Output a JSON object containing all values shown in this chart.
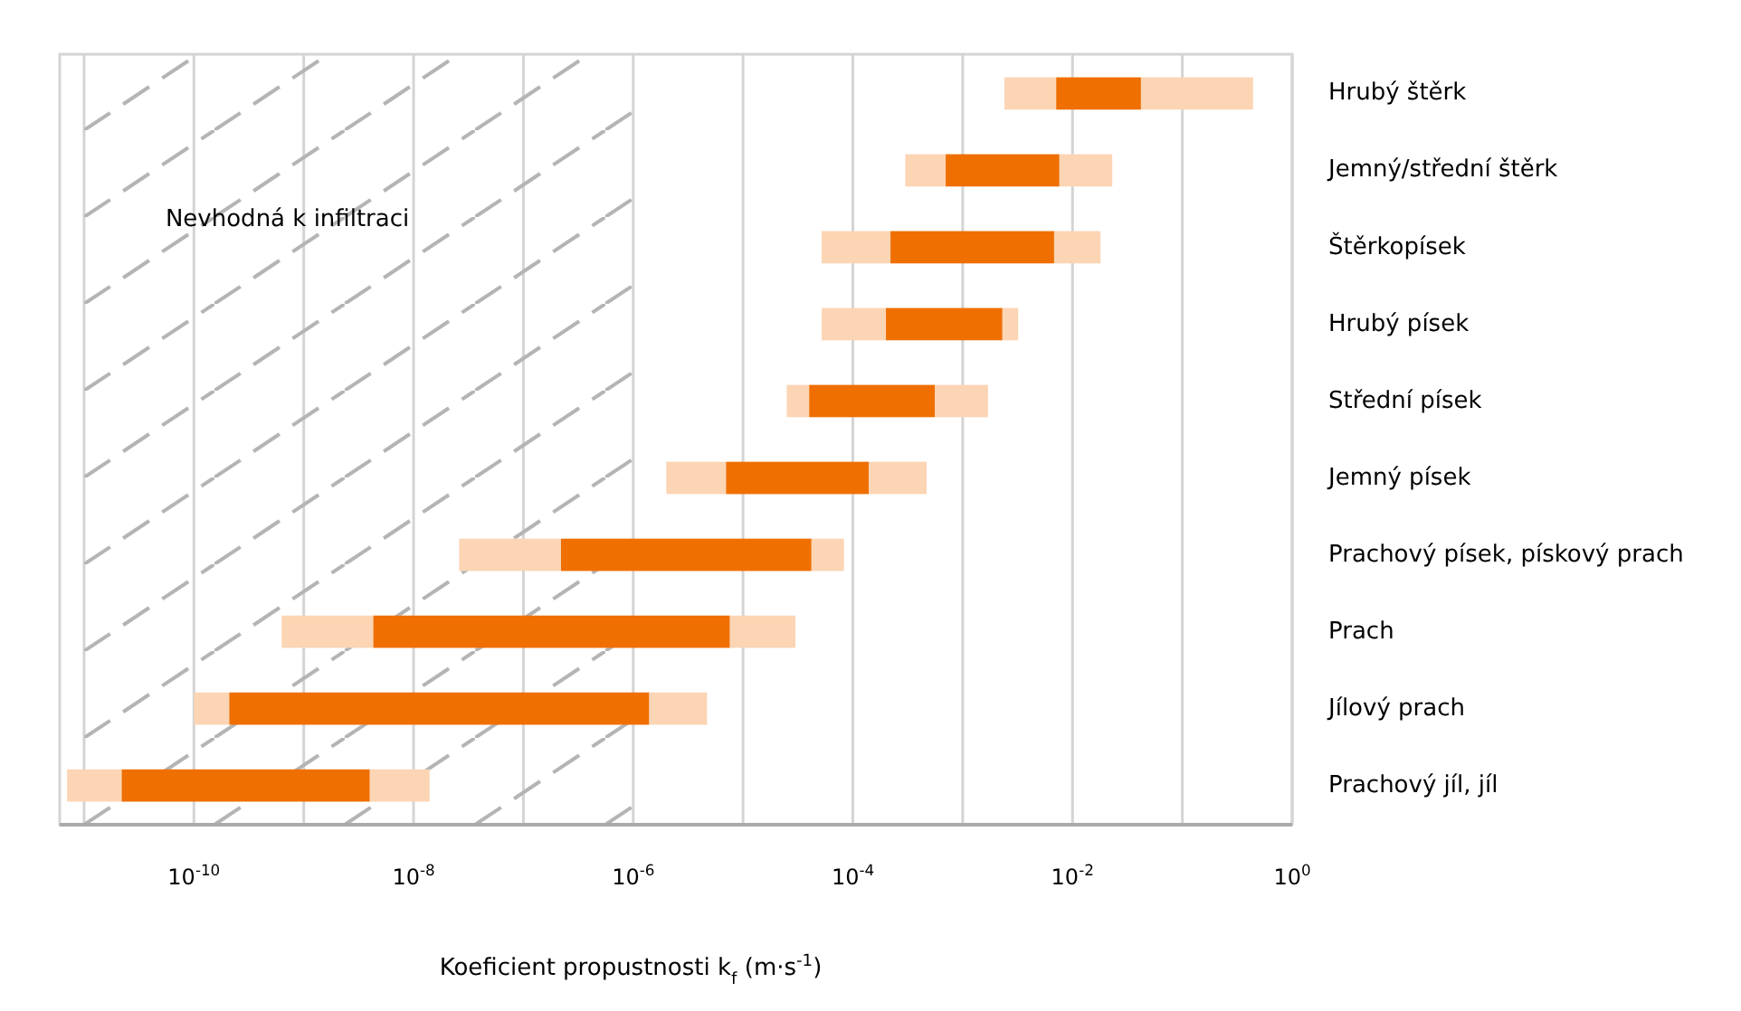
{
  "chart_data": {
    "type": "bar",
    "orientation": "horizontal",
    "log": "x",
    "grid": "x",
    "xlabel": "Koeficient propustnosti k$_{f}$ (m·s$^{-1}$)",
    "categories": [
      "Hrubý štěrk",
      "Jemný/střední štěrk",
      "Štěrkopísek",
      "Hrubý písek",
      "Střední písek",
      "Jemný písek",
      "Prachový písek, pískový prach",
      "Prach",
      "Jílový prach",
      "Prachový jíl, jíl"
    ],
    "series": [
      {
        "color": "#fbd5b4",
        "base": [
          0.0024,
          0.0003,
          5.2e-05,
          5.2e-05,
          2.5e-05,
          2e-06,
          2.6e-08,
          6.3e-10,
          1e-10,
          7e-12
        ],
        "values": [
          0.0047,
          0.0004,
          0.000168,
          0.000148,
          1.5e-05,
          5e-06,
          1.94e-07,
          3.67e-09,
          1.1e-10,
          1.5e-11
        ]
      },
      {
        "color": "#ef6f00",
        "base": [
          0.0071,
          0.0007,
          0.00022,
          0.0002,
          4e-05,
          7e-06,
          2.2e-07,
          4.3e-09,
          2.1e-10,
          2.2e-11
        ],
        "values": [
          0.0349,
          0.0069,
          0.00658,
          0.0021,
          0.00052,
          0.000133,
          4.178e-05,
          7.5957e-06,
          1.39979e-06,
          3.978e-09
        ]
      },
      {
        "color": "#fbd5b4",
        "base": [
          0.042,
          0.0076,
          0.0068,
          0.0023,
          0.00056,
          0.00014,
          4.2e-05,
          7.6e-06,
          1.4e-06,
          4e-09
        ],
        "values": [
          0.398,
          0.0154,
          0.0112,
          0.0009,
          0.00114,
          0.00033,
          4.1e-05,
          2.24e-05,
          3.3e-06,
          1e-08
        ]
      }
    ],
    "xlim": [
      6e-12,
      1
    ],
    "xticks": [
      {
        "value": 1e-11,
        "label": null
      },
      {
        "value": 1e-10,
        "label": "10$^{-10}$"
      },
      {
        "value": 1e-09,
        "label": null
      },
      {
        "value": 1e-08,
        "label": "10$^{-8}$"
      },
      {
        "value": 1e-07,
        "label": null
      },
      {
        "value": 1e-06,
        "label": "10$^{-6}$"
      },
      {
        "value": 1e-05,
        "label": null
      },
      {
        "value": 0.0001,
        "label": "10$^{-4}$"
      },
      {
        "value": 0.001,
        "label": null
      },
      {
        "value": 0.01,
        "label": "10$^{-2}$"
      },
      {
        "value": 0.1,
        "label": null
      },
      {
        "value": 1,
        "label": "10$^{0}$"
      }
    ],
    "bands": [
      {
        "axis": "x",
        "from": 1e-11,
        "to": 1e-06,
        "label": "Nevhodná k infiltraci",
        "color": "#b4b4b4"
      }
    ]
  }
}
